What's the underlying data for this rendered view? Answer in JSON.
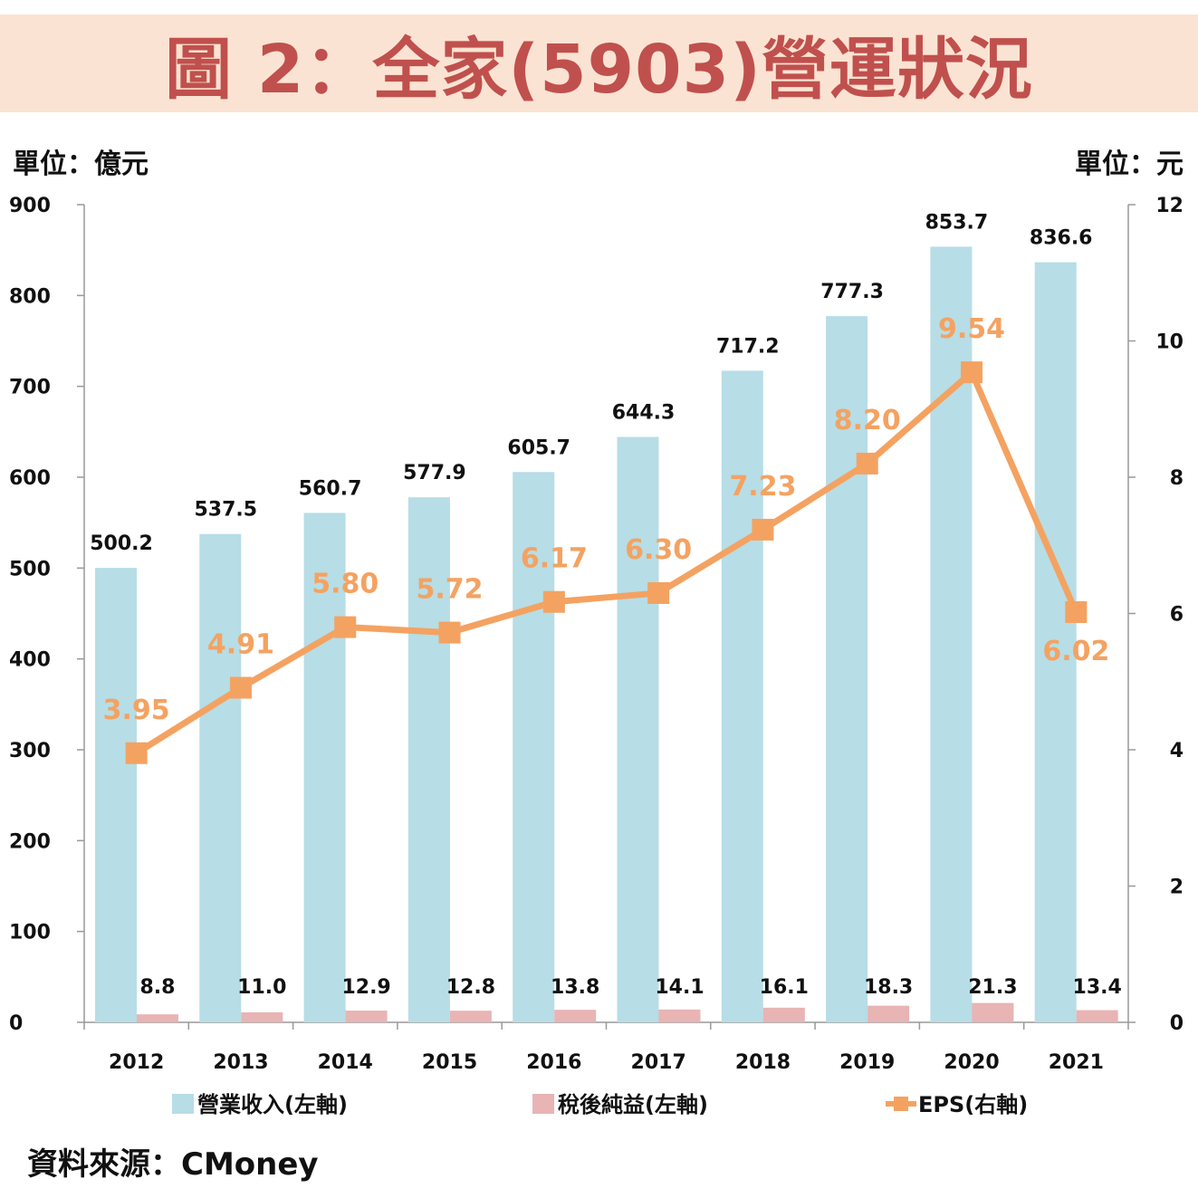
{
  "title": "圖 2：全家(5903)營運狀況",
  "unit_left": "單位：億元",
  "unit_right": "單位：元",
  "source": "資料來源：CMoney",
  "colors": {
    "revenue": "#b7dde6",
    "net_income": "#e8b4b4",
    "eps": "#f4a261",
    "title_bg": "#fbe3d3",
    "title_text": "#c0504d"
  },
  "chart_data": {
    "type": "bar",
    "categories": [
      "2012",
      "2013",
      "2014",
      "2015",
      "2016",
      "2017",
      "2018",
      "2019",
      "2020",
      "2021"
    ],
    "series": [
      {
        "name": "營業收入(左軸)",
        "type": "bar",
        "axis": "left",
        "values": [
          500.2,
          537.5,
          560.7,
          577.9,
          605.7,
          644.3,
          717.2,
          777.3,
          853.7,
          836.6
        ],
        "labels": [
          "500.2",
          "537.5",
          "560.7",
          "577.9",
          "605.7",
          "644.3",
          "717.2",
          "777.3",
          "853.7",
          "836.6"
        ]
      },
      {
        "name": "稅後純益(左軸)",
        "type": "bar",
        "axis": "left",
        "values": [
          8.8,
          11.0,
          12.9,
          12.8,
          13.8,
          14.1,
          16.1,
          18.3,
          21.3,
          13.4
        ],
        "labels": [
          "8.8",
          "11.0",
          "12.9",
          "12.8",
          "13.8",
          "14.1",
          "16.1",
          "18.3",
          "21.3",
          "13.4"
        ]
      },
      {
        "name": "EPS(右軸)",
        "type": "line",
        "axis": "right",
        "values": [
          3.95,
          4.91,
          5.8,
          5.72,
          6.17,
          6.3,
          7.23,
          8.2,
          9.54,
          6.02
        ],
        "labels": [
          "3.95",
          "4.91",
          "5.80",
          "5.72",
          "6.17",
          "6.30",
          "7.23",
          "8.20",
          "9.54",
          "6.02"
        ]
      }
    ],
    "y_left": {
      "min": 0,
      "max": 900,
      "ticks": [
        "0",
        "100",
        "200",
        "300",
        "400",
        "500",
        "600",
        "700",
        "800",
        "900"
      ]
    },
    "y_right": {
      "min": 0,
      "max": 12,
      "ticks": [
        "0",
        "2",
        "4",
        "6",
        "8",
        "10",
        "12"
      ]
    },
    "grid": false,
    "legend_position": "bottom"
  }
}
